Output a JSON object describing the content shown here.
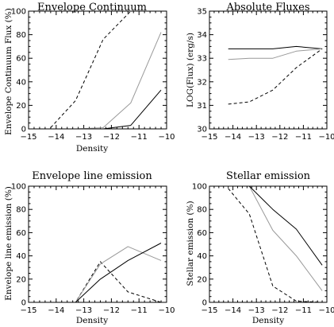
{
  "chart_data": [
    {
      "type": "line",
      "title": "Envelope Continuum",
      "xlabel": "Density",
      "ylabel": "Envelope Continuum Flux (%)",
      "xlim": [
        -15,
        -10
      ],
      "ylim": [
        0,
        100
      ],
      "xticks": [
        -15,
        -14,
        -13,
        -12,
        -11,
        -10
      ],
      "yticks": [
        0,
        20,
        40,
        60,
        80,
        100
      ],
      "xtick_labels": [
        "−15",
        "−14",
        "−13",
        "−12",
        "−11",
        "−10"
      ],
      "ytick_labels": [
        "0",
        "20",
        "40",
        "60",
        "80",
        "100"
      ],
      "series": [
        {
          "style": "dashed",
          "color": "#000000",
          "x": [
            -14.2,
            -13.3,
            -12.3,
            -11.3,
            -10.2
          ],
          "y": [
            1,
            24,
            76,
            100,
            100
          ]
        },
        {
          "style": "solid",
          "color": "#999999",
          "x": [
            -14.2,
            -13.3,
            -12.3,
            -11.3,
            -10.2
          ],
          "y": [
            0,
            0,
            1,
            22,
            82
          ]
        },
        {
          "style": "solid",
          "color": "#000000",
          "x": [
            -14.2,
            -13.3,
            -12.3,
            -11.3,
            -10.2
          ],
          "y": [
            0,
            0,
            0,
            3,
            33
          ]
        }
      ]
    },
    {
      "type": "line",
      "title": "Absolute Fluxes",
      "xlabel": "",
      "ylabel": "LOG(Flux) (erg/s)",
      "xlim": [
        -15,
        -10
      ],
      "ylim": [
        30,
        35
      ],
      "xticks": [
        -15,
        -14,
        -13,
        -12,
        -11,
        -10
      ],
      "yticks": [
        30,
        31,
        32,
        33,
        34,
        35
      ],
      "xtick_labels": [
        "−15",
        "−14",
        "−13",
        "−12",
        "−11",
        "−10"
      ],
      "ytick_labels": [
        "30",
        "31",
        "32",
        "33",
        "34",
        "35"
      ],
      "series": [
        {
          "style": "solid",
          "color": "#000000",
          "x": [
            -14.2,
            -13.3,
            -12.3,
            -11.3,
            -10.2
          ],
          "y": [
            33.4,
            33.4,
            33.4,
            33.5,
            33.4
          ]
        },
        {
          "style": "solid",
          "color": "#999999",
          "x": [
            -14.2,
            -13.3,
            -12.3,
            -11.3,
            -10.2
          ],
          "y": [
            32.95,
            33.0,
            33.0,
            33.3,
            33.4
          ]
        },
        {
          "style": "dashed",
          "color": "#000000",
          "x": [
            -14.2,
            -13.3,
            -12.3,
            -11.3,
            -10.2
          ],
          "y": [
            31.05,
            31.15,
            31.65,
            32.6,
            33.4
          ]
        }
      ]
    },
    {
      "type": "line",
      "title": "Envelope line emission",
      "xlabel": "Density",
      "ylabel": "Envelope line emission (%)",
      "xlim": [
        -15,
        -10
      ],
      "ylim": [
        0,
        100
      ],
      "xticks": [
        -15,
        -14,
        -13,
        -12,
        -11,
        -10
      ],
      "yticks": [
        0,
        20,
        40,
        60,
        80,
        100
      ],
      "xtick_labels": [
        "−15",
        "−14",
        "−13",
        "−12",
        "−11",
        "−10"
      ],
      "ytick_labels": [
        "0",
        "20",
        "40",
        "60",
        "80",
        "100"
      ],
      "series": [
        {
          "style": "dashed",
          "color": "#000000",
          "x": [
            -14.2,
            -13.3,
            -12.4,
            -11.4,
            -10.2
          ],
          "y": [
            0,
            0,
            35,
            9,
            0
          ]
        },
        {
          "style": "solid",
          "color": "#999999",
          "x": [
            -14.2,
            -13.3,
            -12.4,
            -11.4,
            -10.2
          ],
          "y": [
            0,
            0,
            33,
            48,
            36
          ]
        },
        {
          "style": "solid",
          "color": "#000000",
          "x": [
            -14.2,
            -13.3,
            -12.4,
            -11.4,
            -10.2
          ],
          "y": [
            0,
            0,
            20,
            36,
            51
          ]
        }
      ]
    },
    {
      "type": "line",
      "title": "Stellar emission",
      "xlabel": "Density",
      "ylabel": "Stellar emission (%)",
      "xlim": [
        -15,
        -10
      ],
      "ylim": [
        0,
        100
      ],
      "xticks": [
        -15,
        -14,
        -13,
        -12,
        -11,
        -10
      ],
      "yticks": [
        0,
        20,
        40,
        60,
        80,
        100
      ],
      "xtick_labels": [
        "−15",
        "−14",
        "−13",
        "−12",
        "−11",
        "−10"
      ],
      "ytick_labels": [
        "0",
        "20",
        "40",
        "60",
        "80",
        "100"
      ],
      "series": [
        {
          "style": "dashed",
          "color": "#000000",
          "x": [
            -14.2,
            -13.3,
            -12.3,
            -11.3,
            -10.2
          ],
          "y": [
            98,
            76,
            14,
            1,
            0
          ]
        },
        {
          "style": "solid",
          "color": "#999999",
          "x": [
            -14.2,
            -13.3,
            -12.3,
            -11.3,
            -10.2
          ],
          "y": [
            100,
            100,
            62,
            40,
            10
          ]
        },
        {
          "style": "solid",
          "color": "#000000",
          "x": [
            -14.2,
            -13.3,
            -12.3,
            -11.3,
            -10.2
          ],
          "y": [
            100,
            100,
            80,
            63,
            32
          ]
        }
      ]
    }
  ]
}
